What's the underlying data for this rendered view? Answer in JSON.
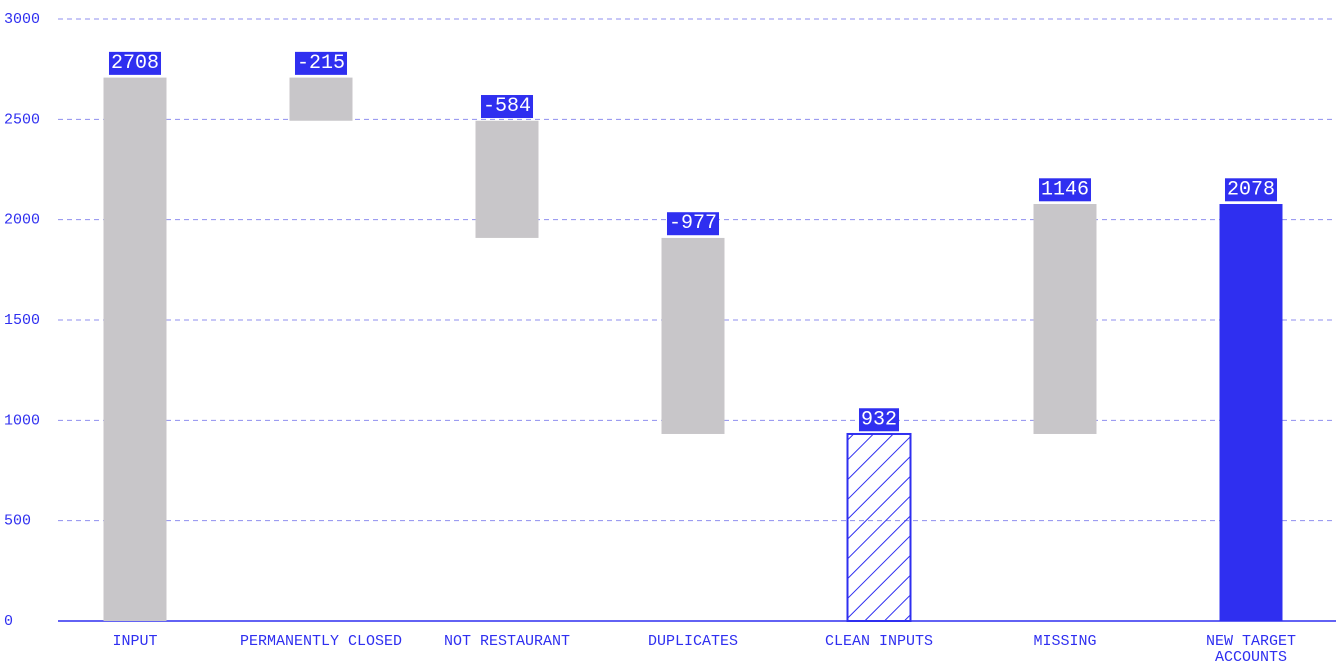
{
  "chart_data": {
    "type": "waterfall",
    "categories": [
      "INPUT",
      "PERMANENTLY CLOSED",
      "NOT RESTAURANT",
      "DUPLICATES",
      "CLEAN INPUTS",
      "MISSING",
      "NEW TARGET\nACCOUNTS"
    ],
    "values": [
      2708,
      -215,
      -584,
      -977,
      932,
      1146,
      2078
    ],
    "colors": [
      "#c8c6c9",
      "#c8c6c9",
      "#c8c6c9",
      "#c8c6c9",
      "#2f2ff0",
      "#c8c6c9",
      "#2f2ff0"
    ],
    "hatched": [
      false,
      false,
      false,
      false,
      true,
      false,
      false
    ],
    "label_color": "#2f2ff0",
    "ylim": [
      0,
      3000
    ],
    "yticks": [
      0,
      500,
      1000,
      1500,
      2000,
      2500,
      3000
    ],
    "grid": true
  }
}
